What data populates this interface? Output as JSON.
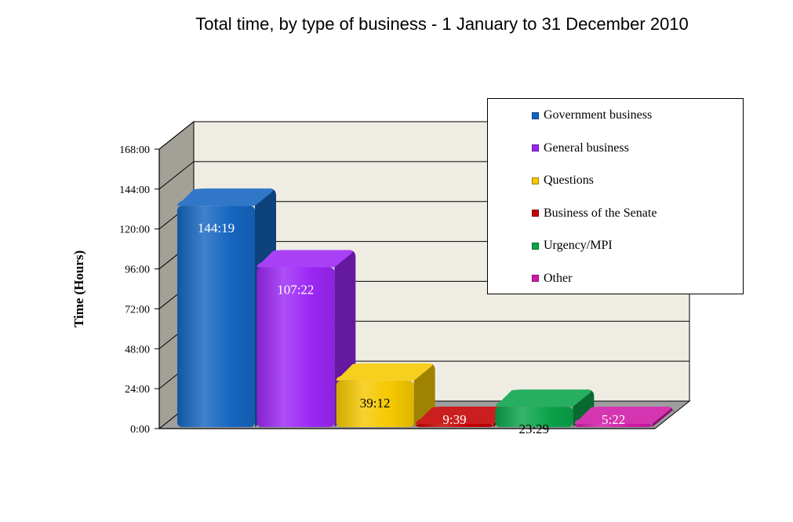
{
  "chart_data": {
    "type": "bar",
    "title": "Total time, by type of business - 1 January to 31 December 2010",
    "xlabel": "",
    "ylabel": "Time (Hours)",
    "ylim": [
      0,
      168
    ],
    "y_tick_labels": [
      "0:00",
      "24:00",
      "48:00",
      "72:00",
      "96:00",
      "120:00",
      "144:00",
      "168:00"
    ],
    "categories": [
      "Government business",
      "General business",
      "Questions",
      "Business of the Senate",
      "Urgency/MPI",
      "Other"
    ],
    "values": [
      144.32,
      107.37,
      39.2,
      9.65,
      23.48,
      5.37
    ],
    "data_labels": [
      "144:19",
      "107:22",
      "39:12",
      "9:39",
      "23:29",
      "5:22"
    ],
    "colors": [
      "#1565c0",
      "#9c27f5",
      "#f5c800",
      "#c40000",
      "#0aa34a",
      "#d01aa8"
    ],
    "grid": true,
    "legend_position": "top-right",
    "style": "3d"
  }
}
